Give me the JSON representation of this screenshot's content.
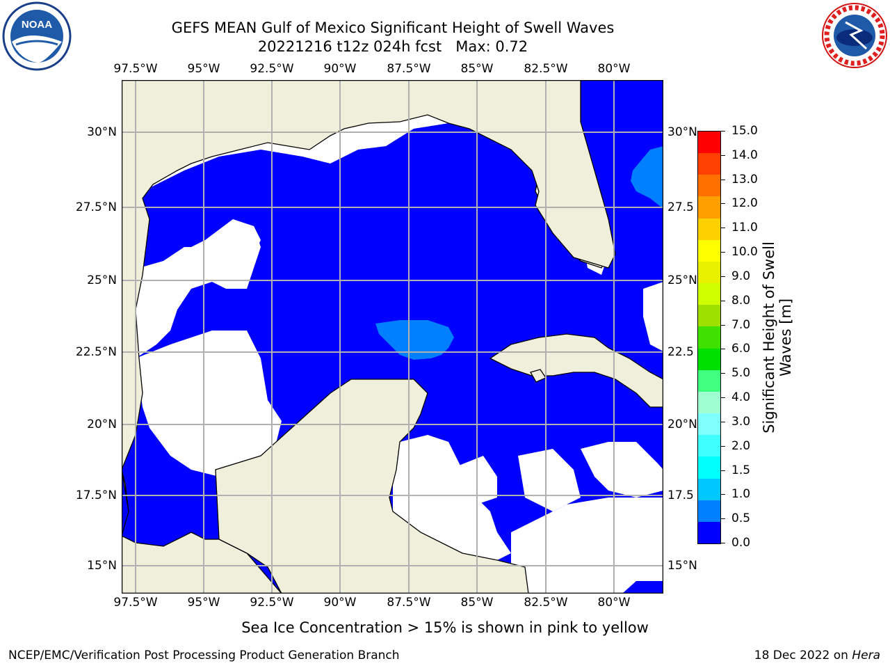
{
  "title_line1": "GEFS MEAN Gulf of Mexico Significant Height of Swell Waves",
  "title_line2": "20221216 t12z 024h fcst   Max: 0.72",
  "lon_ticks": [
    "97.5°W",
    "95°W",
    "92.5°W",
    "90°W",
    "87.5°W",
    "85°W",
    "82.5°W",
    "80°W"
  ],
  "lat_ticks_left": [
    "30°N",
    "27.5°N",
    "25°N",
    "22.5°N",
    "20°N",
    "17.5°N",
    "15°N"
  ],
  "lat_ticks_right": [
    "30°N",
    "27.5",
    "25°N",
    "22.5",
    "20°N",
    "17.5",
    "15°N"
  ],
  "colorbar": {
    "title_line1": "Significant Height of Swell",
    "title_line2": "Waves [m]",
    "ticks": [
      "0.0",
      "0.5",
      "1.0",
      "1.5",
      "2.0",
      "3.0",
      "4.0",
      "5.0",
      "6.0",
      "7.0",
      "8.0",
      "9.0",
      "10.0",
      "11.0",
      "12.0",
      "13.0",
      "14.0",
      "15.0"
    ],
    "colors": [
      "#0000ff",
      "#0080ff",
      "#00c8ff",
      "#00ffff",
      "#40ffff",
      "#80ffff",
      "#a0ffd0",
      "#40ff80",
      "#00e000",
      "#40e000",
      "#a0e000",
      "#d0ff00",
      "#e8f000",
      "#ffff00",
      "#ffd000",
      "#ffa000",
      "#ff7000",
      "#ff4000",
      "#ff0000"
    ]
  },
  "map": {
    "land_color": "#efefdc",
    "ocean_zero_color": "#ffffff",
    "swell_low_color": "#0000ff",
    "swell_mid_color": "#0080ff",
    "grid_color": "#b0b0b0"
  },
  "caption": "Sea Ice Concentration > 15% is shown in pink to yellow",
  "footer_left": "NCEP/EMC/Verification Post Processing Product Generation Branch",
  "footer_right_date": "18 Dec 2022 on ",
  "footer_right_machine": "Hera",
  "noaa_logo_text": "NOAA",
  "nws_logo_text": "NATIONAL WEATHER SERVICE"
}
